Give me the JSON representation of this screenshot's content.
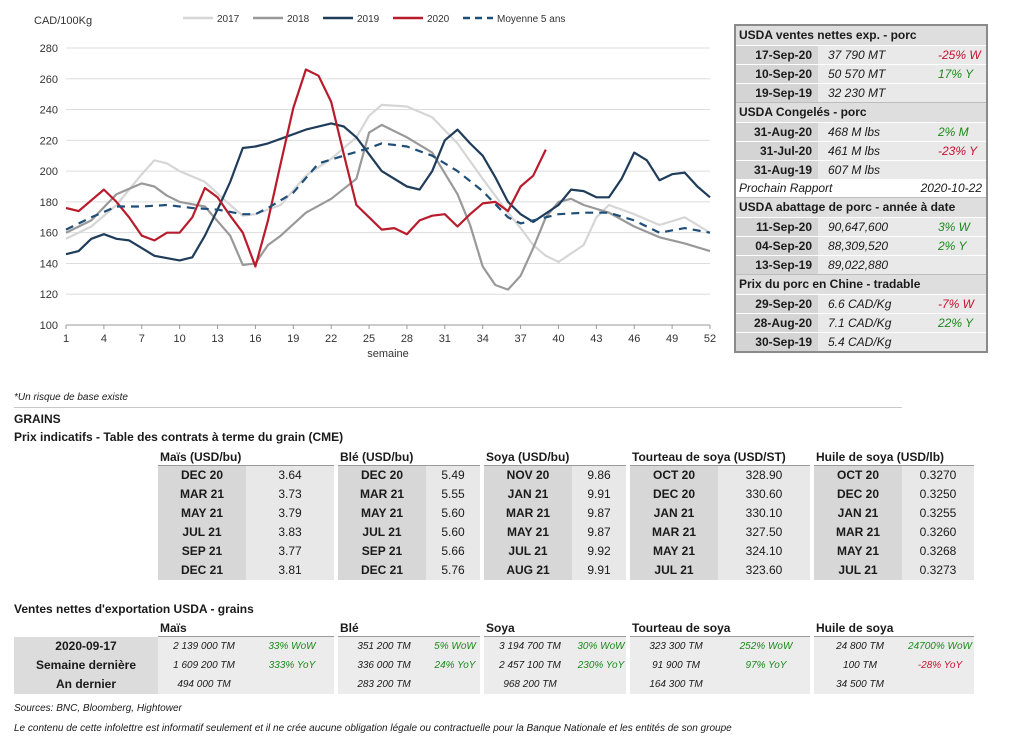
{
  "chart_data": {
    "type": "line",
    "ylabel": "CAD/100Kg",
    "xlabel": "semaine",
    "xlim": [
      1,
      52
    ],
    "ylim": [
      100,
      280
    ],
    "x_ticks": [
      1,
      4,
      7,
      10,
      13,
      16,
      19,
      22,
      25,
      28,
      31,
      34,
      37,
      40,
      43,
      46,
      49,
      52
    ],
    "y_ticks": [
      100,
      120,
      140,
      160,
      180,
      200,
      220,
      240,
      260,
      280
    ],
    "legend_position": "top",
    "series": [
      {
        "name": "2017",
        "color": "#d6d6d6",
        "dash": false,
        "x": [
          1,
          3,
          5,
          7,
          8,
          9,
          10,
          12,
          14,
          15,
          16,
          17,
          18,
          20,
          22,
          24,
          25,
          26,
          28,
          30,
          32,
          34,
          36,
          37,
          38,
          39,
          40,
          42,
          43,
          44,
          46,
          48,
          50,
          52
        ],
        "y": [
          156,
          164,
          178,
          198,
          207,
          205,
          200,
          193,
          178,
          171,
          172,
          175,
          178,
          197,
          208,
          222,
          236,
          243,
          242,
          235,
          218,
          195,
          173,
          163,
          152,
          145,
          141,
          152,
          170,
          178,
          172,
          165,
          170,
          160
        ]
      },
      {
        "name": "2018",
        "color": "#999999",
        "dash": false,
        "x": [
          1,
          3,
          5,
          7,
          8,
          9,
          10,
          12,
          14,
          15,
          16,
          17,
          18,
          20,
          22,
          24,
          25,
          26,
          28,
          30,
          32,
          33,
          34,
          35,
          36,
          37,
          38,
          39,
          40,
          41,
          42,
          44,
          46,
          48,
          50,
          52
        ],
        "y": [
          160,
          168,
          185,
          192,
          190,
          184,
          180,
          177,
          158,
          139,
          140,
          152,
          158,
          173,
          182,
          195,
          225,
          230,
          222,
          212,
          185,
          165,
          138,
          126,
          123,
          132,
          150,
          170,
          180,
          182,
          178,
          173,
          164,
          157,
          153,
          148
        ]
      },
      {
        "name": "2019",
        "color": "#1f3c5a",
        "dash": false,
        "x": [
          1,
          2,
          3,
          4,
          5,
          6,
          7,
          8,
          10,
          11,
          12,
          13,
          14,
          15,
          16,
          17,
          18,
          20,
          22,
          23,
          24,
          26,
          28,
          29,
          30,
          31,
          32,
          33,
          34,
          35,
          36,
          37,
          38,
          40,
          41,
          42,
          43,
          44,
          45,
          46,
          47,
          48,
          49,
          50,
          51,
          52
        ],
        "y": [
          146,
          148,
          156,
          159,
          156,
          155,
          150,
          145,
          142,
          144,
          158,
          175,
          193,
          215,
          216,
          218,
          221,
          227,
          231,
          229,
          222,
          200,
          190,
          188,
          200,
          220,
          227,
          218,
          210,
          196,
          180,
          172,
          167,
          178,
          188,
          187,
          183,
          183,
          195,
          212,
          207,
          194,
          198,
          199,
          190,
          183
        ]
      },
      {
        "name": "2020",
        "color": "#b81c2c",
        "dash": false,
        "x": [
          1,
          2,
          3,
          4,
          5,
          6,
          7,
          8,
          9,
          10,
          11,
          12,
          13,
          14,
          15,
          16,
          17,
          18,
          19,
          20,
          21,
          22,
          23,
          24,
          25,
          26,
          27,
          28,
          29,
          30,
          31,
          32,
          33,
          34,
          35,
          36,
          37,
          38,
          39
        ],
        "y": [
          176,
          174,
          181,
          188,
          180,
          170,
          158,
          155,
          160,
          160,
          170,
          189,
          183,
          171,
          160,
          138,
          168,
          205,
          241,
          266,
          262,
          245,
          211,
          178,
          170,
          162,
          163,
          159,
          168,
          171,
          172,
          164,
          172,
          179,
          180,
          174,
          190,
          197,
          214
        ]
      },
      {
        "name": "Moyenne 5 ans",
        "color": "#1f4e79",
        "dash": true,
        "x": [
          1,
          3,
          5,
          7,
          9,
          11,
          13,
          15,
          16,
          17,
          19,
          21,
          23,
          25,
          26,
          28,
          30,
          32,
          34,
          36,
          37,
          38,
          40,
          42,
          44,
          46,
          48,
          50,
          52
        ],
        "y": [
          162,
          170,
          177,
          177,
          178,
          176,
          175,
          172,
          172,
          176,
          186,
          205,
          210,
          215,
          218,
          216,
          210,
          200,
          187,
          170,
          166,
          168,
          172,
          173,
          173,
          168,
          160,
          163,
          160
        ]
      }
    ]
  },
  "chart_colors": {
    "grid": "#dddddd",
    "axis": "#999999"
  },
  "usda": {
    "sec1": {
      "title": "USDA ventes nettes exp. - porc",
      "rows": [
        {
          "date": "17-Sep-20",
          "value": "37 790  MT",
          "change": "-25% W",
          "sign": "neg"
        },
        {
          "date": "10-Sep-20",
          "value": "50 570  MT",
          "change": "17% Y",
          "sign": "pos"
        },
        {
          "date": "19-Sep-19",
          "value": "32 230  MT",
          "change": "",
          "sign": ""
        }
      ]
    },
    "sec2": {
      "title": "USDA Congelés - porc",
      "rows": [
        {
          "date": "31-Aug-20",
          "value": "468 M lbs",
          "change": "2% M",
          "sign": "pos"
        },
        {
          "date": "31-Jul-20",
          "value": "461 M lbs",
          "change": "-23% Y",
          "sign": "neg"
        },
        {
          "date": "31-Aug-19",
          "value": "607 M lbs",
          "change": "",
          "sign": ""
        }
      ]
    },
    "next_report": {
      "label": "Prochain Rapport",
      "date": "2020-10-22"
    },
    "sec3": {
      "title": "USDA abattage de porc - année à date",
      "rows": [
        {
          "date": "11-Sep-20",
          "value": "90,647,600",
          "change": "3% W",
          "sign": "pos"
        },
        {
          "date": "04-Sep-20",
          "value": "88,309,520",
          "change": "2% Y",
          "sign": "pos"
        },
        {
          "date": "13-Sep-19",
          "value": "89,022,880",
          "change": "",
          "sign": ""
        }
      ]
    },
    "sec4": {
      "title": "Prix du porc en Chine - tradable",
      "rows": [
        {
          "date": "29-Sep-20",
          "value": "6.6 CAD/Kg",
          "change": "-7% W",
          "sign": "neg"
        },
        {
          "date": "28-Aug-20",
          "value": "7.1 CAD/Kg",
          "change": "22% Y",
          "sign": "pos"
        },
        {
          "date": "30-Sep-19",
          "value": "5.4 CAD/Kg",
          "change": "",
          "sign": ""
        }
      ]
    }
  },
  "note": "*Un risque de base existe",
  "grains_title": "GRAINS",
  "grains_subtitle": "Prix indicatifs - Table des contrats à terme du grain (CME)",
  "grains": [
    {
      "header": "Maïs (USD/bu)",
      "rows": [
        [
          "DEC 20",
          "3.64"
        ],
        [
          "MAR 21",
          "3.73"
        ],
        [
          "MAY 21",
          "3.79"
        ],
        [
          "JUL 21",
          "3.83"
        ],
        [
          "SEP 21",
          "3.77"
        ],
        [
          "DEC 21",
          "3.81"
        ]
      ]
    },
    {
      "header": "Blé (USD/bu)",
      "rows": [
        [
          "DEC 20",
          "5.49"
        ],
        [
          "MAR 21",
          "5.55"
        ],
        [
          "MAY 21",
          "5.60"
        ],
        [
          "JUL 21",
          "5.60"
        ],
        [
          "SEP 21",
          "5.66"
        ],
        [
          "DEC 21",
          "5.76"
        ]
      ]
    },
    {
      "header": "Soya (USD/bu)",
      "rows": [
        [
          "NOV 20",
          "9.86"
        ],
        [
          "JAN 21",
          "9.91"
        ],
        [
          "MAR 21",
          "9.87"
        ],
        [
          "MAY 21",
          "9.87"
        ],
        [
          "JUL 21",
          "9.92"
        ],
        [
          "AUG 21",
          "9.91"
        ]
      ]
    },
    {
      "header": "Tourteau de soya (USD/ST)",
      "rows": [
        [
          "OCT 20",
          "328.90"
        ],
        [
          "DEC 20",
          "330.60"
        ],
        [
          "JAN 21",
          "330.10"
        ],
        [
          "MAR 21",
          "327.50"
        ],
        [
          "MAY 21",
          "324.10"
        ],
        [
          "JUL 21",
          "323.60"
        ]
      ]
    },
    {
      "header": "Huile de soya (USD/lb)",
      "rows": [
        [
          "OCT 20",
          "0.3270"
        ],
        [
          "DEC 20",
          "0.3250"
        ],
        [
          "JAN 21",
          "0.3255"
        ],
        [
          "MAR 21",
          "0.3260"
        ],
        [
          "MAY 21",
          "0.3268"
        ],
        [
          "JUL 21",
          "0.3273"
        ]
      ]
    }
  ],
  "export_title": "Ventes nettes d'exportation USDA - grains",
  "export_row_labels": [
    "2020-09-17",
    "Semaine dernière",
    "An dernier"
  ],
  "export": [
    {
      "header": "Maïs",
      "rows": [
        [
          "2 139 000 TM",
          "33% WoW",
          "pos"
        ],
        [
          "1 609 200 TM",
          "333% YoY",
          "pos"
        ],
        [
          "494 000 TM",
          "",
          ""
        ]
      ]
    },
    {
      "header": "Blé",
      "rows": [
        [
          "351 200 TM",
          "5% WoW",
          "pos"
        ],
        [
          "336 000 TM",
          "24% YoY",
          "pos"
        ],
        [
          "283 200 TM",
          "",
          ""
        ]
      ]
    },
    {
      "header": "Soya",
      "rows": [
        [
          "3 194 700 TM",
          "30% WoW",
          "pos"
        ],
        [
          "2 457 100 TM",
          "230% YoY",
          "pos"
        ],
        [
          "968 200 TM",
          "",
          ""
        ]
      ]
    },
    {
      "header": "Tourteau de soya",
      "rows": [
        [
          "323 300 TM",
          "252% WoW",
          "pos"
        ],
        [
          "91 900 TM",
          "97% YoY",
          "pos"
        ],
        [
          "164 300 TM",
          "",
          ""
        ]
      ]
    },
    {
      "header": "Huile de soya",
      "rows": [
        [
          "24 800 TM",
          "24700% WoW",
          "pos"
        ],
        [
          "100 TM",
          "-28% YoY",
          "neg"
        ],
        [
          "34 500 TM",
          "",
          ""
        ]
      ]
    }
  ],
  "sources": "Sources: BNC, Bloomberg, Hightower",
  "disclaimer": "Le contenu de cette infolettre est informatif seulement et il ne crée aucune obligation légale ou contractuelle pour la Banque Nationale et les entités de son groupe"
}
